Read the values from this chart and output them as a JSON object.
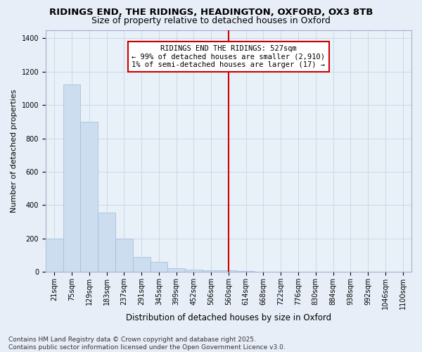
{
  "title_line1": "RIDINGS END, THE RIDINGS, HEADINGTON, OXFORD, OX3 8TB",
  "title_line2": "Size of property relative to detached houses in Oxford",
  "xlabel": "Distribution of detached houses by size in Oxford",
  "ylabel": "Number of detached properties",
  "categories": [
    "21sqm",
    "75sqm",
    "129sqm",
    "183sqm",
    "237sqm",
    "291sqm",
    "345sqm",
    "399sqm",
    "452sqm",
    "506sqm",
    "560sqm",
    "614sqm",
    "668sqm",
    "722sqm",
    "776sqm",
    "830sqm",
    "884sqm",
    "938sqm",
    "992sqm",
    "1046sqm",
    "1100sqm"
  ],
  "values": [
    200,
    1125,
    900,
    355,
    200,
    90,
    58,
    20,
    15,
    10,
    10,
    5,
    0,
    0,
    0,
    0,
    0,
    0,
    0,
    0,
    0
  ],
  "bar_color": "#ccddf0",
  "bar_edge_color": "#a0bcd8",
  "annotation_text_line1": "RIDINGS END THE RIDINGS: 527sqm",
  "annotation_text_line2": "← 99% of detached houses are smaller (2,910)",
  "annotation_text_line3": "1% of semi-detached houses are larger (17) →",
  "annotation_box_color": "#ffffff",
  "annotation_box_edge_color": "#cc0000",
  "vline_color": "#cc0000",
  "vline_x_index": 10,
  "ylim": [
    0,
    1450
  ],
  "yticks": [
    0,
    200,
    400,
    600,
    800,
    1000,
    1200,
    1400
  ],
  "background_color": "#e8eef8",
  "plot_bg_color": "#e8f0f8",
  "grid_color": "#c8d4e8",
  "footnote": "Contains HM Land Registry data © Crown copyright and database right 2025.\nContains public sector information licensed under the Open Government Licence v3.0.",
  "title_fontsize": 9.5,
  "subtitle_fontsize": 9,
  "annotation_fontsize": 7.5,
  "xlabel_fontsize": 8.5,
  "ylabel_fontsize": 8,
  "tick_fontsize": 7,
  "footnote_fontsize": 6.5
}
